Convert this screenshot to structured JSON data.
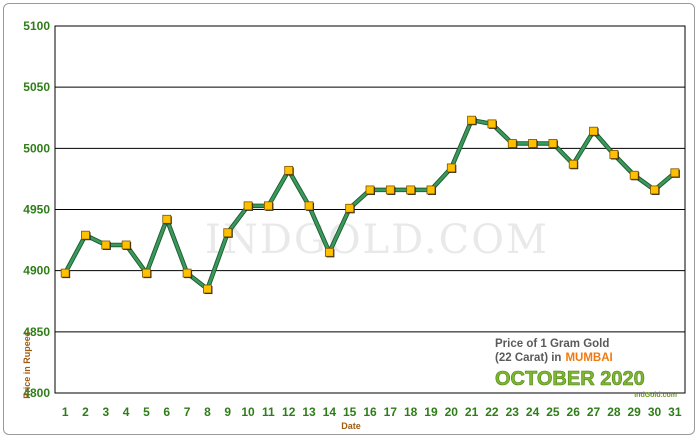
{
  "chart_data": {
    "type": "line",
    "x": [
      1,
      2,
      3,
      4,
      5,
      6,
      7,
      8,
      9,
      10,
      11,
      12,
      13,
      14,
      15,
      16,
      17,
      18,
      19,
      20,
      21,
      22,
      23,
      24,
      25,
      26,
      27,
      28,
      29,
      30,
      31
    ],
    "series": [
      {
        "values": [
          4898,
          4929,
          4921,
          4921,
          4898,
          4942,
          4898,
          4885,
          4931,
          4953,
          4953,
          4982,
          4953,
          4915,
          4951,
          4966,
          4966,
          4966,
          4966,
          4984,
          5023,
          5020,
          5004,
          5004,
          5004,
          4987,
          5014,
          4995,
          4978,
          4966,
          4980
        ]
      }
    ],
    "ylim": [
      4800,
      5100
    ],
    "yticks": [
      4800,
      4850,
      4900,
      4950,
      5000,
      5050,
      5100
    ],
    "xlabel": "Date",
    "ylabel": "Price in Rupees",
    "grid": "horizontal",
    "line_color": "#3a9a5a",
    "marker_color": "#ffc000",
    "watermark": "INDGOLD.COM",
    "caption": {
      "line1": "Price of 1 Gram Gold",
      "line2_prefix": "(22 Carat) in",
      "city": "MUMBAI",
      "month": "OCTOBER 2020",
      "site": "IndGold.com"
    }
  }
}
